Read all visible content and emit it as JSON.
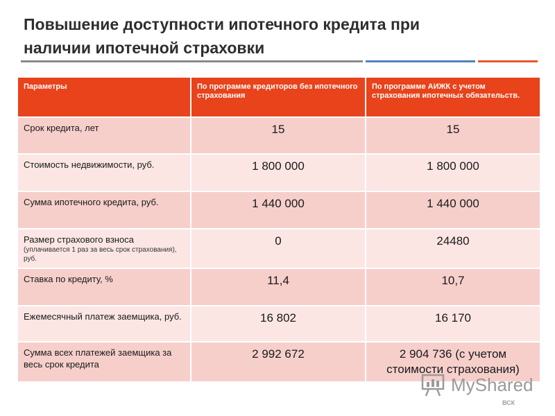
{
  "title_line1": "Повышение доступности ипотечного кредита при",
  "title_line2": "наличии ипотечной страховки",
  "table": {
    "headers": [
      "Параметры",
      "По программе кредиторов без ипотечного страхования",
      "По программе АИЖК с учетом страхования ипотечных обязательств."
    ],
    "rows": [
      {
        "param": "Срок кредита, лет",
        "note": "",
        "a": "15",
        "b": "15"
      },
      {
        "param": "Стоимость недвижимости, руб.",
        "note": "",
        "a": "1 800 000",
        "b": "1 800 000"
      },
      {
        "param": "Сумма ипотечного кредита, руб.",
        "note": "",
        "a": "1 440 000",
        "b": "1 440 000"
      },
      {
        "param": "Размер страхового взноса",
        "note": "(уплачивается 1 раз за весь срок страхования), руб.",
        "a": "0",
        "b": "24480"
      },
      {
        "param": "Ставка по кредиту, %",
        "note": "",
        "a": "11,4",
        "b": "10,7"
      },
      {
        "param": "Ежемесячный платеж заемщика, руб.",
        "note": "",
        "a": "16 802",
        "b": "16 170"
      },
      {
        "param": "Сумма всех платежей заемщика за весь срок кредита",
        "note": "",
        "a": "2 992 672",
        "b": "2 904 736 (с учетом стоимости страхования)"
      }
    ]
  },
  "watermark": "MyShared",
  "brand": "ВСК",
  "colors": {
    "header_bg": "#e8431b",
    "row_odd": "#f6cfcb",
    "row_even": "#fbe6e4"
  }
}
